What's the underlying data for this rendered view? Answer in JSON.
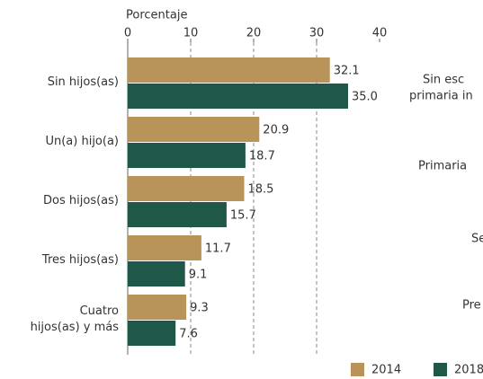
{
  "chart_data": {
    "type": "hbar",
    "axis_label": "Porcentaje",
    "categories": [
      "Sin hijos(as)",
      "Un(a) hijo(a)",
      "Dos hijos(as)",
      "Tres hijos(as)",
      "Cuatro\nhijos(as) y más"
    ],
    "series": [
      {
        "name": "2014",
        "color": "#b8935a",
        "values": [
          32.1,
          20.9,
          18.5,
          11.7,
          9.3
        ],
        "value_labels": [
          "32.1",
          "20.9",
          "18.5",
          "11.7",
          "9.3"
        ]
      },
      {
        "name": "2018",
        "color": "#1f5748",
        "values": [
          35.0,
          18.7,
          15.7,
          9.1,
          7.6
        ],
        "value_labels": [
          "35.0",
          "18.7",
          "15.7",
          "9.1",
          "7.6"
        ]
      }
    ],
    "xlim": [
      0,
      40
    ],
    "xticks": [
      0,
      10,
      20,
      30,
      40
    ],
    "grid": true,
    "legend": "bottom",
    "annotations": [
      "Sin esc",
      "primaria in",
      "Primaria",
      "Se",
      "Pre"
    ]
  }
}
